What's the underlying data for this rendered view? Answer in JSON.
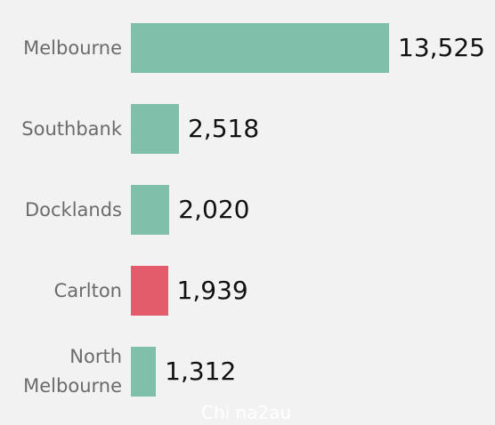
{
  "chart_data": {
    "type": "bar",
    "orientation": "horizontal",
    "categories": [
      "Melbourne",
      "Southbank",
      "Docklands",
      "Carlton",
      "North Melbourne"
    ],
    "values": [
      13525,
      2518,
      2020,
      1939,
      1312
    ],
    "value_labels": [
      "13,525",
      "2,518",
      "2,020",
      "1,939",
      "1,312"
    ],
    "colors": [
      "#80bfaa",
      "#80bfaa",
      "#80bfaa",
      "#e35c6c",
      "#80bfaa"
    ]
  },
  "watermark": "Chi na2au"
}
